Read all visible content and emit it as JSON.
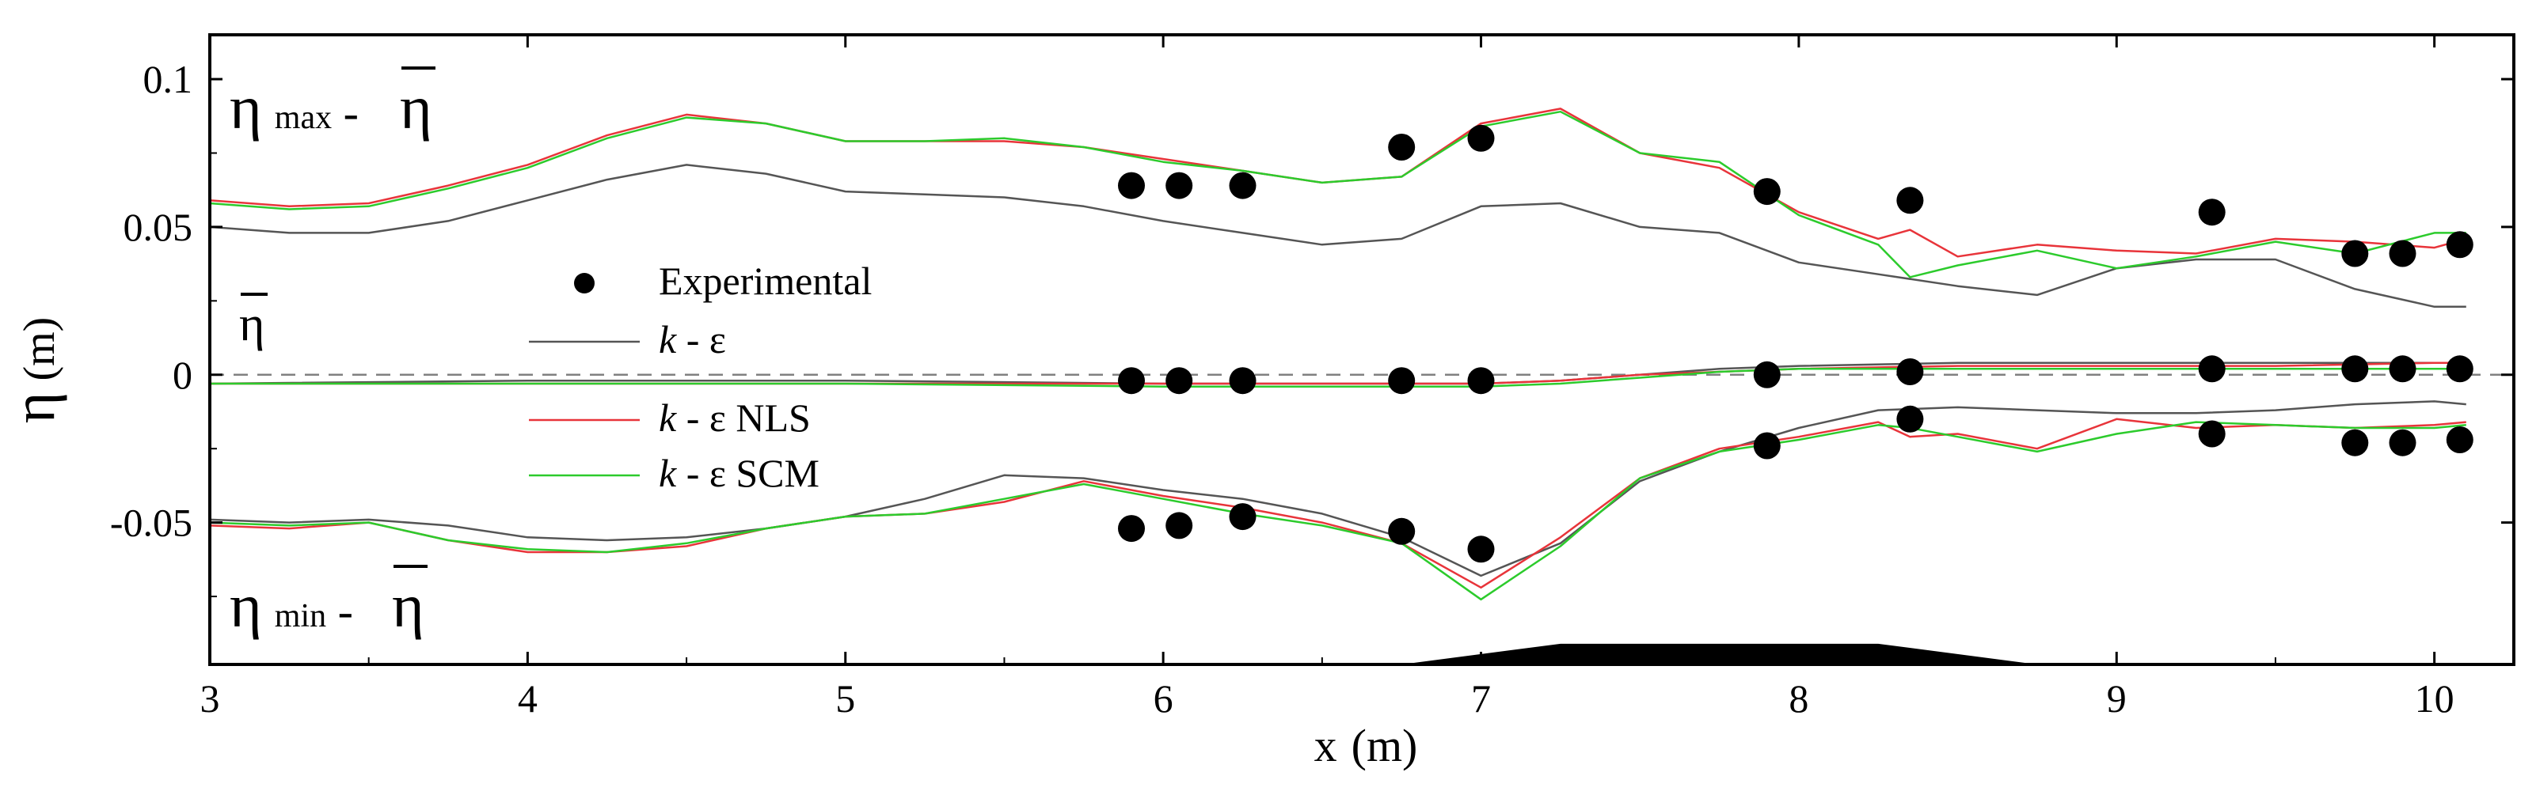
{
  "chart_data": {
    "type": "line",
    "xlabel_sym": "x",
    "xlabel_unit": "(m)",
    "ylabel_sym": "η",
    "ylabel_unit": "(m)",
    "xlim": [
      3,
      10.25
    ],
    "ylim": [
      -0.098,
      0.115
    ],
    "xticks": [
      {
        "value": 3,
        "label": "3"
      },
      {
        "value": 4,
        "label": "4"
      },
      {
        "value": 5,
        "label": "5"
      },
      {
        "value": 6,
        "label": "6"
      },
      {
        "value": 7,
        "label": "7"
      },
      {
        "value": 8,
        "label": "8"
      },
      {
        "value": 9,
        "label": "9"
      },
      {
        "value": 10,
        "label": "10"
      }
    ],
    "yticks": [
      {
        "value": 0.1,
        "label": "0.1"
      },
      {
        "value": 0.05,
        "label": "0.05"
      },
      {
        "value": 0,
        "label": "0"
      },
      {
        "value": -0.05,
        "label": "-0.05"
      }
    ],
    "reference_line": {
      "y": 0,
      "style": "dashed",
      "color": "#808080"
    },
    "annotations": {
      "max": {
        "sym": "η",
        "sub": "max",
        "sep": " - ",
        "bar": "η"
      },
      "mean": {
        "bar": "η"
      },
      "min": {
        "sym": "η",
        "sub": "min",
        "sep": " - ",
        "bar": "η"
      }
    },
    "legend": {
      "placement": "middle-left",
      "entries": [
        {
          "name": "Experimental",
          "marker": "circle",
          "color": "#000000",
          "italic": "",
          "rest": "Experimental"
        },
        {
          "name": "k - ε",
          "marker": "line",
          "color": "#555555",
          "italic": "k",
          "rest": " - ε"
        },
        {
          "name": "k - ε NLS",
          "marker": "line",
          "color": "#e8343a",
          "italic": "k",
          "rest": " - ε NLS"
        },
        {
          "name": "k - ε SCM",
          "marker": "line",
          "color": "#2ccb2c",
          "italic": "k",
          "rest": " - ε SCM"
        }
      ]
    },
    "bathymetry": {
      "description": "submerged bar",
      "color": "#000000",
      "points": [
        [
          6.75,
          -0.098
        ],
        [
          7.25,
          -0.091
        ],
        [
          8.25,
          -0.091
        ],
        [
          8.75,
          -0.098
        ]
      ]
    },
    "series": [
      {
        "name": "k - ε",
        "group": "max",
        "color": "#555555",
        "x": [
          3,
          3.25,
          3.5,
          3.75,
          4,
          4.25,
          4.5,
          4.75,
          5,
          5.25,
          5.5,
          5.75,
          6,
          6.25,
          6.5,
          6.75,
          7,
          7.25,
          7.5,
          7.75,
          8,
          8.25,
          8.5,
          8.75,
          9,
          9.25,
          9.5,
          9.75,
          10,
          10.1
        ],
        "y": [
          0.05,
          0.048,
          0.048,
          0.052,
          0.059,
          0.066,
          0.071,
          0.068,
          0.062,
          0.061,
          0.06,
          0.057,
          0.052,
          0.048,
          0.044,
          0.046,
          0.057,
          0.058,
          0.05,
          0.048,
          0.038,
          0.034,
          0.03,
          0.027,
          0.036,
          0.039,
          0.039,
          0.029,
          0.023,
          0.023
        ]
      },
      {
        "name": "k - ε NLS",
        "group": "max",
        "color": "#e8343a",
        "x": [
          3,
          3.25,
          3.5,
          3.75,
          4,
          4.25,
          4.5,
          4.75,
          5,
          5.25,
          5.5,
          5.75,
          6,
          6.25,
          6.5,
          6.75,
          7,
          7.25,
          7.5,
          7.75,
          8,
          8.25,
          8.35,
          8.5,
          8.75,
          9,
          9.25,
          9.5,
          9.75,
          10,
          10.1
        ],
        "y": [
          0.059,
          0.057,
          0.058,
          0.064,
          0.071,
          0.081,
          0.088,
          0.085,
          0.079,
          0.079,
          0.079,
          0.077,
          0.073,
          0.069,
          0.065,
          0.067,
          0.085,
          0.09,
          0.075,
          0.07,
          0.055,
          0.046,
          0.049,
          0.04,
          0.044,
          0.042,
          0.041,
          0.046,
          0.045,
          0.043,
          0.046
        ]
      },
      {
        "name": "k - ε SCM",
        "group": "max",
        "color": "#2ccb2c",
        "x": [
          3,
          3.25,
          3.5,
          3.75,
          4,
          4.25,
          4.5,
          4.75,
          5,
          5.25,
          5.5,
          5.75,
          6,
          6.25,
          6.5,
          6.75,
          7,
          7.25,
          7.5,
          7.75,
          8,
          8.25,
          8.35,
          8.5,
          8.75,
          9,
          9.25,
          9.5,
          9.75,
          10,
          10.1
        ],
        "y": [
          0.058,
          0.056,
          0.057,
          0.063,
          0.07,
          0.08,
          0.087,
          0.085,
          0.079,
          0.079,
          0.08,
          0.077,
          0.072,
          0.069,
          0.065,
          0.067,
          0.084,
          0.089,
          0.075,
          0.072,
          0.054,
          0.044,
          0.033,
          0.037,
          0.042,
          0.036,
          0.04,
          0.045,
          0.041,
          0.048,
          0.048
        ]
      },
      {
        "name": "k - ε",
        "group": "mean",
        "color": "#555555",
        "x": [
          3,
          4,
          5,
          6,
          7,
          7.25,
          7.5,
          7.75,
          8,
          8.5,
          9,
          9.5,
          10,
          10.1
        ],
        "y": [
          -0.003,
          -0.002,
          -0.002,
          -0.003,
          -0.003,
          -0.002,
          0.0,
          0.002,
          0.003,
          0.004,
          0.004,
          0.004,
          0.004,
          0.004
        ]
      },
      {
        "name": "k - ε NLS",
        "group": "mean",
        "color": "#e8343a",
        "x": [
          3,
          4,
          5,
          6,
          7,
          7.25,
          7.5,
          7.75,
          8,
          8.5,
          9,
          9.5,
          10,
          10.1
        ],
        "y": [
          -0.003,
          -0.003,
          -0.003,
          -0.003,
          -0.003,
          -0.002,
          0.0,
          0.001,
          0.002,
          0.003,
          0.003,
          0.003,
          0.004,
          0.004
        ]
      },
      {
        "name": "k - ε SCM",
        "group": "mean",
        "color": "#2ccb2c",
        "x": [
          3,
          4,
          5,
          6,
          7,
          7.25,
          7.5,
          7.75,
          8,
          8.5,
          9,
          9.5,
          10,
          10.1
        ],
        "y": [
          -0.003,
          -0.003,
          -0.003,
          -0.004,
          -0.004,
          -0.003,
          -0.001,
          0.001,
          0.002,
          0.002,
          0.002,
          0.002,
          0.002,
          0.002
        ]
      },
      {
        "name": "k - ε",
        "group": "min",
        "color": "#555555",
        "x": [
          3,
          3.25,
          3.5,
          3.75,
          4,
          4.25,
          4.5,
          4.75,
          5,
          5.25,
          5.5,
          5.75,
          6,
          6.25,
          6.5,
          6.75,
          7,
          7.25,
          7.5,
          7.75,
          8,
          8.25,
          8.5,
          8.75,
          9,
          9.25,
          9.5,
          9.75,
          10,
          10.1
        ],
        "y": [
          -0.049,
          -0.05,
          -0.049,
          -0.051,
          -0.055,
          -0.056,
          -0.055,
          -0.052,
          -0.048,
          -0.042,
          -0.034,
          -0.035,
          -0.039,
          -0.042,
          -0.047,
          -0.055,
          -0.068,
          -0.057,
          -0.036,
          -0.026,
          -0.018,
          -0.012,
          -0.011,
          -0.012,
          -0.013,
          -0.013,
          -0.012,
          -0.01,
          -0.009,
          -0.01
        ]
      },
      {
        "name": "k - ε NLS",
        "group": "min",
        "color": "#e8343a",
        "x": [
          3,
          3.25,
          3.5,
          3.75,
          4,
          4.25,
          4.5,
          4.75,
          5,
          5.25,
          5.5,
          5.75,
          6,
          6.25,
          6.5,
          6.75,
          7,
          7.25,
          7.5,
          7.75,
          8,
          8.25,
          8.35,
          8.5,
          8.75,
          9,
          9.25,
          9.5,
          9.75,
          10,
          10.1
        ],
        "y": [
          -0.051,
          -0.052,
          -0.05,
          -0.056,
          -0.06,
          -0.06,
          -0.058,
          -0.052,
          -0.048,
          -0.047,
          -0.043,
          -0.036,
          -0.041,
          -0.045,
          -0.05,
          -0.057,
          -0.072,
          -0.055,
          -0.035,
          -0.025,
          -0.021,
          -0.016,
          -0.021,
          -0.02,
          -0.025,
          -0.015,
          -0.018,
          -0.017,
          -0.018,
          -0.017,
          -0.016
        ]
      },
      {
        "name": "k - ε SCM",
        "group": "min",
        "color": "#2ccb2c",
        "x": [
          3,
          3.25,
          3.5,
          3.75,
          4,
          4.25,
          4.5,
          4.75,
          5,
          5.25,
          5.5,
          5.75,
          6,
          6.25,
          6.5,
          6.75,
          7,
          7.25,
          7.5,
          7.75,
          8,
          8.25,
          8.35,
          8.5,
          8.75,
          9,
          9.25,
          9.5,
          9.75,
          10,
          10.1
        ],
        "y": [
          -0.05,
          -0.051,
          -0.05,
          -0.056,
          -0.059,
          -0.06,
          -0.057,
          -0.052,
          -0.048,
          -0.047,
          -0.042,
          -0.037,
          -0.042,
          -0.047,
          -0.051,
          -0.057,
          -0.076,
          -0.058,
          -0.035,
          -0.026,
          -0.022,
          -0.017,
          -0.018,
          -0.021,
          -0.026,
          -0.02,
          -0.016,
          -0.017,
          -0.018,
          -0.018,
          -0.017
        ]
      }
    ],
    "experimental": {
      "max": [
        [
          5.9,
          0.064
        ],
        [
          6.05,
          0.064
        ],
        [
          6.25,
          0.064
        ],
        [
          6.75,
          0.077
        ],
        [
          7.0,
          0.08
        ],
        [
          7.9,
          0.062
        ],
        [
          8.35,
          0.059
        ],
        [
          9.3,
          0.055
        ],
        [
          9.75,
          0.041
        ],
        [
          9.9,
          0.041
        ],
        [
          10.08,
          0.044
        ]
      ],
      "mean": [
        [
          5.9,
          -0.002
        ],
        [
          6.05,
          -0.002
        ],
        [
          6.25,
          -0.002
        ],
        [
          6.75,
          -0.002
        ],
        [
          7.0,
          -0.002
        ],
        [
          7.9,
          0.0
        ],
        [
          8.35,
          0.001
        ],
        [
          9.3,
          0.002
        ],
        [
          9.75,
          0.002
        ],
        [
          9.9,
          0.002
        ],
        [
          10.08,
          0.002
        ]
      ],
      "min": [
        [
          5.9,
          -0.052
        ],
        [
          6.05,
          -0.051
        ],
        [
          6.25,
          -0.048
        ],
        [
          6.75,
          -0.053
        ],
        [
          7.0,
          -0.059
        ],
        [
          7.9,
          -0.024
        ],
        [
          8.35,
          -0.015
        ],
        [
          9.3,
          -0.02
        ],
        [
          9.75,
          -0.023
        ],
        [
          9.9,
          -0.023
        ],
        [
          10.08,
          -0.022
        ]
      ]
    }
  }
}
